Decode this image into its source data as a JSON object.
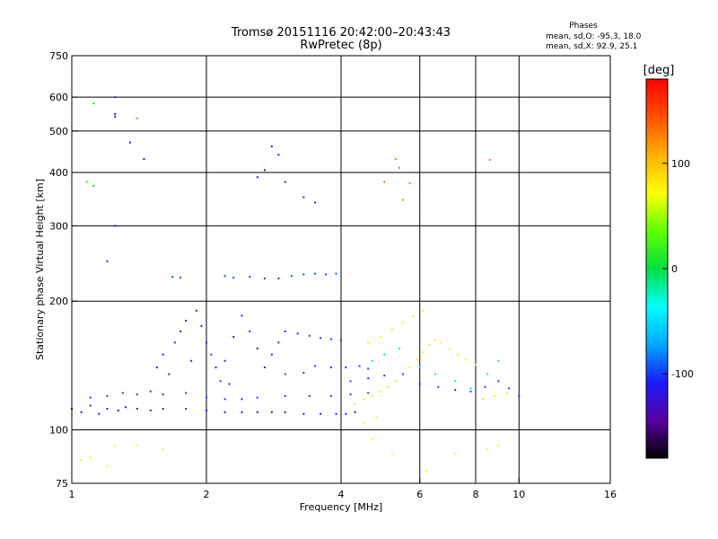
{
  "chart_data": {
    "type": "scatter",
    "title": "Tromsø 20151116 20:42:00–20:43:43",
    "subtitle": "RwPretec (8p)",
    "xlabel": "Frequency [MHz]",
    "ylabel": "Stationary phase Virtual Height [km]",
    "x_scale": "log",
    "y_scale": "log",
    "xlim": [
      1,
      16
    ],
    "ylim": [
      75,
      750
    ],
    "x_ticks": [
      1,
      2,
      4,
      6,
      8,
      10,
      16
    ],
    "y_ticks": [
      75,
      100,
      200,
      300,
      400,
      500,
      600,
      750
    ],
    "grid_x": [
      2,
      4,
      6,
      8,
      10
    ],
    "grid_y": [
      100,
      200,
      300,
      400,
      500,
      600
    ],
    "legend": {
      "heading": "Phases",
      "line1": "mean, sd,O: -95.3, 18.0",
      "line2": "mean, sd,X:  92.9, 25.1"
    },
    "colorbar": {
      "label": "[deg]",
      "range": [
        -180,
        180
      ],
      "ticks": [
        100,
        0,
        -100
      ],
      "colormap": [
        "#000000",
        "#5a00a0",
        "#1a1aff",
        "#00a8ff",
        "#00ffff",
        "#00e040",
        "#60ff00",
        "#ffff00",
        "#ffb000",
        "#ff5000",
        "#ff0000"
      ]
    },
    "series": [
      {
        "color_phase": -110,
        "points": [
          [
            1.0,
            112
          ],
          [
            1.05,
            110
          ],
          [
            1.1,
            114
          ],
          [
            1.15,
            109
          ],
          [
            1.2,
            112
          ],
          [
            1.27,
            111
          ],
          [
            1.32,
            113
          ],
          [
            1.4,
            112
          ],
          [
            1.5,
            111
          ],
          [
            1.6,
            112
          ],
          [
            1.8,
            112
          ],
          [
            2.0,
            111
          ],
          [
            2.2,
            110
          ],
          [
            2.4,
            110
          ],
          [
            2.6,
            110
          ],
          [
            2.8,
            110
          ],
          [
            3.0,
            110
          ],
          [
            3.3,
            109
          ],
          [
            3.6,
            109
          ],
          [
            3.9,
            109
          ],
          [
            4.1,
            109
          ],
          [
            4.3,
            110
          ]
        ]
      },
      {
        "color_phase": -100,
        "points": [
          [
            1.1,
            119
          ],
          [
            1.2,
            120
          ],
          [
            1.3,
            122
          ],
          [
            1.4,
            121
          ],
          [
            1.5,
            123
          ],
          [
            1.6,
            121
          ],
          [
            1.8,
            122
          ],
          [
            2.0,
            119
          ],
          [
            2.2,
            118
          ],
          [
            2.4,
            118
          ],
          [
            2.6,
            119
          ],
          [
            3.0,
            120
          ],
          [
            3.4,
            120
          ],
          [
            3.8,
            120
          ],
          [
            4.2,
            121
          ],
          [
            4.6,
            122
          ]
        ]
      },
      {
        "color_phase": -105,
        "points": [
          [
            1.55,
            140
          ],
          [
            1.6,
            150
          ],
          [
            1.7,
            160
          ],
          [
            1.75,
            170
          ],
          [
            1.8,
            180
          ],
          [
            1.9,
            190
          ],
          [
            1.95,
            175
          ],
          [
            2.0,
            160
          ],
          [
            2.05,
            150
          ],
          [
            2.1,
            140
          ],
          [
            2.15,
            130
          ],
          [
            2.2,
            145
          ],
          [
            2.3,
            165
          ],
          [
            2.4,
            185
          ],
          [
            2.5,
            170
          ],
          [
            2.6,
            155
          ],
          [
            2.7,
            140
          ],
          [
            2.8,
            150
          ],
          [
            2.9,
            160
          ],
          [
            3.0,
            170
          ],
          [
            1.65,
            135
          ],
          [
            1.85,
            145
          ],
          [
            2.25,
            128
          ]
        ]
      },
      {
        "color_phase": -95,
        "points": [
          [
            1.68,
            228
          ],
          [
            1.75,
            227
          ],
          [
            2.2,
            229
          ],
          [
            2.3,
            227
          ],
          [
            2.5,
            228
          ],
          [
            2.7,
            226
          ],
          [
            2.9,
            226
          ],
          [
            3.1,
            229
          ],
          [
            3.3,
            231
          ],
          [
            3.5,
            232
          ],
          [
            3.7,
            231
          ],
          [
            3.9,
            232
          ]
        ]
      },
      {
        "color_phase": -100,
        "points": [
          [
            3.2,
            168
          ],
          [
            3.4,
            166
          ],
          [
            3.6,
            164
          ],
          [
            3.8,
            163
          ],
          [
            4.0,
            162
          ],
          [
            3.5,
            141
          ],
          [
            3.8,
            140
          ],
          [
            4.1,
            140
          ],
          [
            4.4,
            141
          ],
          [
            4.6,
            139
          ],
          [
            3.0,
            135
          ],
          [
            3.3,
            136
          ]
        ]
      },
      {
        "color_phase": 80,
        "points": [
          [
            4.3,
            115
          ],
          [
            4.5,
            118
          ],
          [
            4.7,
            120
          ],
          [
            4.9,
            123
          ],
          [
            5.1,
            126
          ],
          [
            5.3,
            130
          ],
          [
            5.5,
            135
          ],
          [
            5.7,
            140
          ],
          [
            5.9,
            146
          ],
          [
            6.1,
            152
          ],
          [
            6.3,
            158
          ],
          [
            6.5,
            162
          ],
          [
            6.7,
            160
          ],
          [
            7.0,
            155
          ],
          [
            7.3,
            150
          ],
          [
            7.6,
            146
          ],
          [
            8.0,
            142
          ],
          [
            4.6,
            160
          ],
          [
            4.9,
            165
          ],
          [
            5.2,
            172
          ],
          [
            5.5,
            178
          ],
          [
            5.8,
            184
          ],
          [
            6.1,
            190
          ],
          [
            4.5,
            104
          ],
          [
            4.8,
            107
          ],
          [
            8.3,
            118
          ],
          [
            8.8,
            120
          ],
          [
            9.4,
            122
          ]
        ]
      },
      {
        "color_phase": -20,
        "points": [
          [
            4.7,
            145
          ],
          [
            5.0,
            150
          ],
          [
            5.4,
            155
          ],
          [
            6.0,
            140
          ],
          [
            6.5,
            135
          ],
          [
            7.2,
            130
          ],
          [
            7.8,
            125
          ],
          [
            8.5,
            135
          ],
          [
            9.0,
            145
          ]
        ]
      },
      {
        "color_phase": -100,
        "points": [
          [
            4.2,
            130
          ],
          [
            4.6,
            132
          ],
          [
            5.0,
            134
          ],
          [
            5.5,
            135
          ],
          [
            6.0,
            128
          ],
          [
            6.6,
            126
          ],
          [
            7.2,
            124
          ],
          [
            7.8,
            123
          ],
          [
            8.4,
            126
          ],
          [
            9.0,
            130
          ],
          [
            9.5,
            125
          ],
          [
            10.0,
            120
          ]
        ]
      },
      {
        "color_phase": -110,
        "points": [
          [
            1.25,
            600
          ],
          [
            1.25,
            548
          ],
          [
            1.25,
            540
          ],
          [
            1.35,
            470
          ],
          [
            1.45,
            430
          ],
          [
            2.6,
            390
          ],
          [
            2.7,
            405
          ],
          [
            2.8,
            460
          ],
          [
            2.9,
            440
          ],
          [
            3.0,
            380
          ],
          [
            3.3,
            350
          ],
          [
            3.5,
            340
          ],
          [
            1.25,
            300
          ],
          [
            1.2,
            248
          ]
        ]
      },
      {
        "color_phase": 130,
        "points": [
          [
            5.0,
            380
          ],
          [
            5.3,
            430
          ],
          [
            5.4,
            410
          ],
          [
            5.5,
            345
          ],
          [
            5.7,
            378
          ],
          [
            8.6,
            428
          ],
          [
            1.4,
            535
          ]
        ]
      },
      {
        "color_phase": 10,
        "points": [
          [
            1.12,
            580
          ],
          [
            1.12,
            372
          ],
          [
            1.08,
            380
          ]
        ]
      },
      {
        "color_phase": 75,
        "points": [
          [
            1.05,
            85
          ],
          [
            1.1,
            86
          ],
          [
            1.2,
            82
          ],
          [
            1.25,
            92
          ],
          [
            1.4,
            92
          ],
          [
            4.7,
            95
          ],
          [
            5.2,
            88
          ],
          [
            6.2,
            80
          ],
          [
            7.2,
            88
          ],
          [
            8.5,
            90
          ],
          [
            9.0,
            92
          ],
          [
            1.6,
            90
          ]
        ]
      }
    ]
  }
}
